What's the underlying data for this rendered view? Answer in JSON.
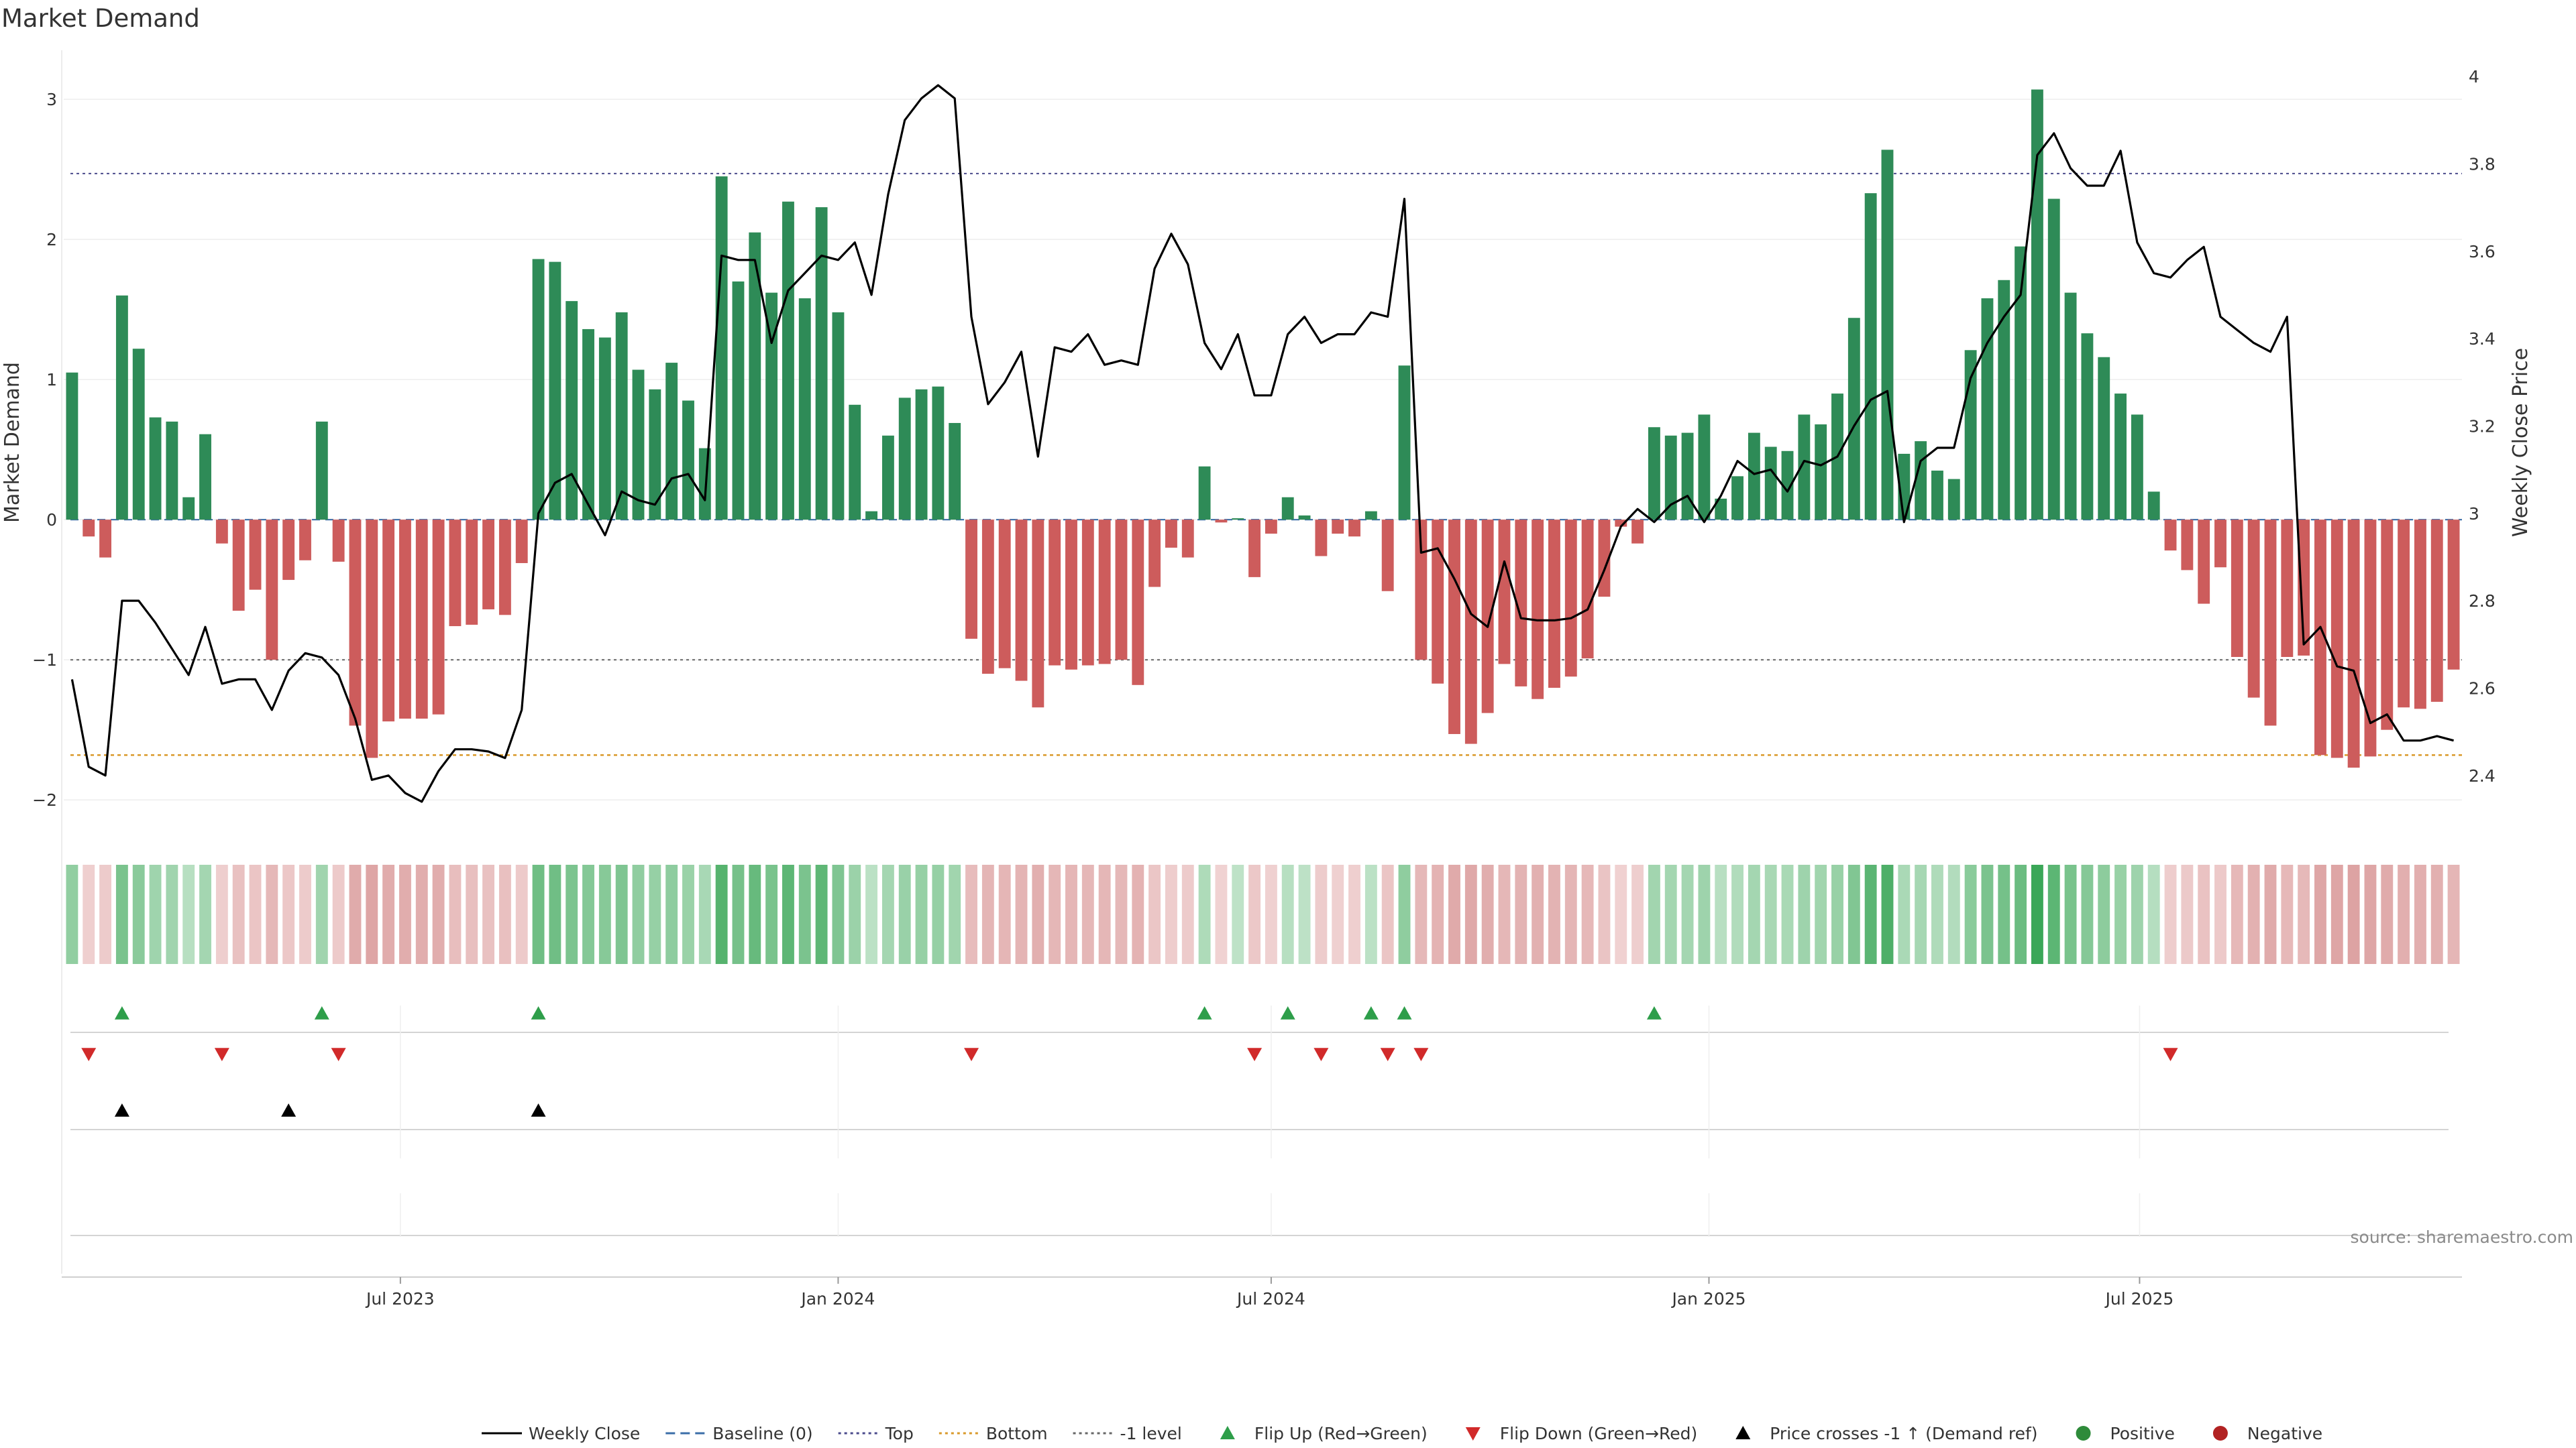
{
  "chart_data": {
    "type": "bar",
    "title": "Market Demand",
    "ylabel": "Market Demand",
    "y2label": "Weekly Close Price",
    "ylim": [
      -2.2,
      3.35
    ],
    "y2lim": [
      2.28,
      4.06
    ],
    "yticks": [
      -2,
      -1,
      0,
      1,
      2,
      3
    ],
    "y2ticks": [
      2.4,
      2.6,
      2.8,
      3,
      3.2,
      3.4,
      3.6,
      3.8,
      4
    ],
    "x_start": "2023-02-13",
    "x_labels": [
      {
        "date": "2023-07-01",
        "text": "Jul 2023"
      },
      {
        "date": "2024-01-01",
        "text": "Jan 2024"
      },
      {
        "date": "2024-07-01",
        "text": "Jul 2024"
      },
      {
        "date": "2025-01-01",
        "text": "Jan 2025"
      },
      {
        "date": "2025-07-01",
        "text": "Jul 2025"
      }
    ],
    "levels": {
      "top": 2.47,
      "bottom": -1.68,
      "minus_one": -1,
      "baseline": 0
    },
    "demand": [
      1.05,
      -0.12,
      -0.27,
      1.6,
      1.22,
      0.73,
      0.7,
      0.16,
      0.61,
      -0.17,
      -0.65,
      -0.5,
      -1.0,
      -0.43,
      -0.29,
      0.7,
      -0.3,
      -1.47,
      -1.7,
      -1.44,
      -1.42,
      -1.42,
      -1.39,
      -0.76,
      -0.75,
      -0.64,
      -0.68,
      -0.31,
      1.86,
      1.84,
      1.56,
      1.36,
      1.3,
      1.48,
      1.07,
      0.93,
      1.12,
      0.85,
      0.51,
      2.45,
      1.7,
      2.05,
      1.62,
      2.27,
      1.58,
      2.23,
      1.48,
      0.82,
      0.06,
      0.6,
      0.87,
      0.93,
      0.95,
      0.69,
      -0.85,
      -1.1,
      -1.06,
      -1.15,
      -1.34,
      -1.04,
      -1.07,
      -1.04,
      -1.03,
      -1.0,
      -1.18,
      -0.48,
      -0.2,
      -0.27,
      0.38,
      -0.02,
      0.01,
      -0.41,
      -0.1,
      0.16,
      0.03,
      -0.26,
      -0.1,
      -0.12,
      0.06,
      -0.51,
      1.1,
      -1.0,
      -1.17,
      -1.53,
      -1.6,
      -1.38,
      -1.03,
      -1.19,
      -1.28,
      -1.2,
      -1.12,
      -0.99,
      -0.55,
      -0.05,
      -0.17,
      0.66,
      0.6,
      0.62,
      0.75,
      0.15,
      0.31,
      0.62,
      0.52,
      0.49,
      0.75,
      0.68,
      0.9,
      1.44,
      2.33,
      2.64,
      0.47,
      0.56,
      0.35,
      0.29,
      1.21,
      1.58,
      1.71,
      1.95,
      3.07,
      2.29,
      1.62,
      1.33,
      1.16,
      0.9,
      0.75,
      0.2,
      -0.22,
      -0.36,
      -0.6,
      -0.34,
      -0.98,
      -1.27,
      -1.47,
      -0.98,
      -0.97,
      -1.68,
      -1.7,
      -1.77,
      -1.69,
      -1.5,
      -1.34,
      -1.35,
      -1.3,
      -1.07
    ],
    "close": [
      2.62,
      2.42,
      2.4,
      2.8,
      2.8,
      2.75,
      2.69,
      2.63,
      2.74,
      2.61,
      2.62,
      2.62,
      2.55,
      2.64,
      2.68,
      2.67,
      2.63,
      2.53,
      2.39,
      2.4,
      2.36,
      2.34,
      2.41,
      2.46,
      2.46,
      2.455,
      2.44,
      2.55,
      3.0,
      3.07,
      3.09,
      3.02,
      2.95,
      3.05,
      3.03,
      3.02,
      3.08,
      3.09,
      3.03,
      3.59,
      3.58,
      3.58,
      3.39,
      3.51,
      3.55,
      3.59,
      3.58,
      3.62,
      3.5,
      3.73,
      3.9,
      3.95,
      3.98,
      3.95,
      3.45,
      3.25,
      3.3,
      3.37,
      3.13,
      3.38,
      3.37,
      3.41,
      3.34,
      3.35,
      3.34,
      3.56,
      3.64,
      3.57,
      3.39,
      3.33,
      3.41,
      3.27,
      3.27,
      3.41,
      3.45,
      3.39,
      3.41,
      3.41,
      3.46,
      3.45,
      3.72,
      2.91,
      2.92,
      2.85,
      2.77,
      2.74,
      2.89,
      2.76,
      2.755,
      2.755,
      2.76,
      2.78,
      2.87,
      2.97,
      3.01,
      2.98,
      3.02,
      3.04,
      2.98,
      3.04,
      3.12,
      3.09,
      3.1,
      3.05,
      3.12,
      3.11,
      3.13,
      3.2,
      3.26,
      3.28,
      2.98,
      3.12,
      3.15,
      3.15,
      3.31,
      3.39,
      3.45,
      3.5,
      3.82,
      3.87,
      3.79,
      3.75,
      3.75,
      3.83,
      3.62,
      3.55,
      3.54,
      3.58,
      3.61,
      3.45,
      3.42,
      3.39,
      3.37,
      3.45,
      2.7,
      2.74,
      2.65,
      2.64,
      2.52,
      2.54,
      2.48,
      2.48,
      2.49,
      2.48
    ],
    "flip_up_weeks": [
      3,
      15,
      28,
      68,
      73,
      78,
      80,
      95
    ],
    "flip_down_weeks": [
      1,
      9,
      16,
      54,
      71,
      75,
      79,
      81,
      126
    ],
    "cross_weeks": [
      3,
      13,
      28
    ],
    "legend": [
      {
        "label": "Weekly Close",
        "symbol": "line",
        "color": "#000000"
      },
      {
        "label": "Baseline (0)",
        "symbol": "dashed",
        "color": "#3b6ea8"
      },
      {
        "label": "Top",
        "symbol": "dotted",
        "color": "#4b4b8c"
      },
      {
        "label": "Bottom",
        "symbol": "dotted",
        "color": "#d99a2b"
      },
      {
        "label": "-1 level",
        "symbol": "dotted",
        "color": "#666666"
      },
      {
        "label": "Flip Up (Red→Green)",
        "symbol": "tri-up",
        "color": "#2e9e4a"
      },
      {
        "label": "Flip Down (Green→Red)",
        "symbol": "tri-down",
        "color": "#d12a2a"
      },
      {
        "label": "Price crosses -1 ↑ (Demand ref)",
        "symbol": "tri-up",
        "color": "#000000"
      },
      {
        "label": "Positive",
        "symbol": "dot",
        "color": "#2e8b3a"
      },
      {
        "label": "Negative",
        "symbol": "dot",
        "color": "#b22222"
      }
    ],
    "colors": {
      "positive": "#2e8b57",
      "negative": "#cd5c5c",
      "close": "#000000"
    }
  },
  "source": "source: sharemaestro.com"
}
